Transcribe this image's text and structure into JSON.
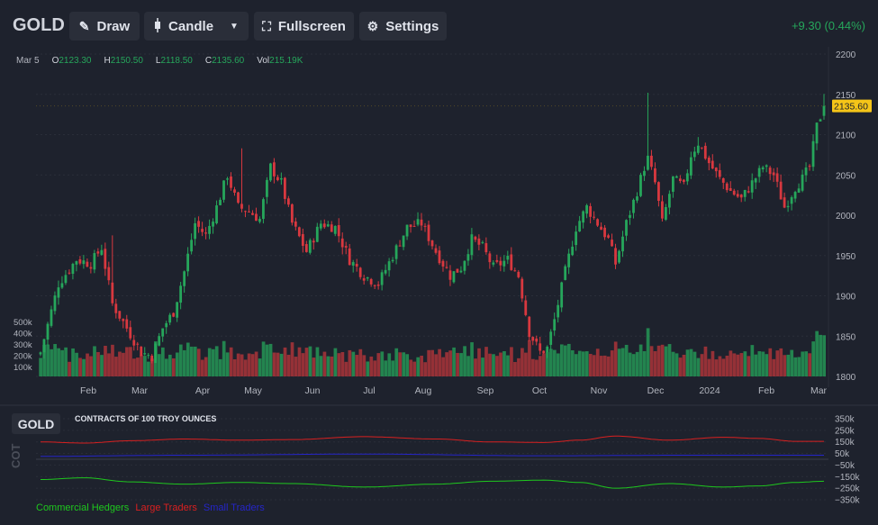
{
  "toolbar": {
    "symbol": "GOLD",
    "draw_label": "Draw",
    "candle_label": "Candle",
    "fullscreen_label": "Fullscreen",
    "settings_label": "Settings",
    "change_text": "+9.30 (0.44%)"
  },
  "ohlc": {
    "date": "Mar 5",
    "o_label": "O",
    "o_value": "2123.30",
    "h_label": "H",
    "h_value": "2150.50",
    "l_label": "L",
    "l_value": "2118.50",
    "c_label": "C",
    "c_value": "2135.60",
    "vol_label": "Vol",
    "vol_value": "215.19K"
  },
  "colors": {
    "up": "#26a65b",
    "down": "#d8383f",
    "price_tag": "#f5c518",
    "commercial": "#1ec81e",
    "large": "#d92020",
    "small": "#2525c8"
  },
  "chart_data": [
    {
      "type": "candlestick",
      "title": "GOLD",
      "x_ticks": [
        "Feb",
        "Mar",
        "Apr",
        "May",
        "Jun",
        "Jul",
        "Aug",
        "Sep",
        "Oct",
        "Nov",
        "Dec",
        "2024",
        "Feb",
        "Mar"
      ],
      "y_ticks": [
        1800,
        1850,
        1900,
        1950,
        2000,
        2050,
        2100,
        2150,
        2200
      ],
      "ylim": [
        1800,
        2200
      ],
      "last_price": 2135.6,
      "last_price_label": "2135.60",
      "close_anchors": [
        [
          0,
          1830
        ],
        [
          5,
          1915
        ],
        [
          10,
          1945
        ],
        [
          14,
          1940
        ],
        [
          17,
          1960
        ],
        [
          20,
          1890
        ],
        [
          24,
          1860
        ],
        [
          28,
          1830
        ],
        [
          31,
          1825
        ],
        [
          34,
          1860
        ],
        [
          37,
          1880
        ],
        [
          40,
          1930
        ],
        [
          43,
          1990
        ],
        [
          46,
          1975
        ],
        [
          49,
          2010
        ],
        [
          52,
          2050
        ],
        [
          55,
          2010
        ],
        [
          58,
          2005
        ],
        [
          61,
          1995
        ],
        [
          64,
          2060
        ],
        [
          67,
          2040
        ],
        [
          70,
          1990
        ],
        [
          74,
          1955
        ],
        [
          78,
          1990
        ],
        [
          82,
          1985
        ],
        [
          86,
          1945
        ],
        [
          90,
          1925
        ],
        [
          94,
          1915
        ],
        [
          98,
          1950
        ],
        [
          102,
          1985
        ],
        [
          106,
          1990
        ],
        [
          110,
          1955
        ],
        [
          114,
          1925
        ],
        [
          117,
          1935
        ],
        [
          120,
          1970
        ],
        [
          123,
          1960
        ],
        [
          126,
          1935
        ],
        [
          130,
          1945
        ],
        [
          133,
          1925
        ],
        [
          136,
          1855
        ],
        [
          139,
          1830
        ],
        [
          141,
          1835
        ],
        [
          143,
          1870
        ],
        [
          146,
          1930
        ],
        [
          149,
          1985
        ],
        [
          152,
          2010
        ],
        [
          155,
          1990
        ],
        [
          158,
          1970
        ],
        [
          160,
          1940
        ],
        [
          163,
          1990
        ],
        [
          166,
          2030
        ],
        [
          168,
          2060
        ],
        [
          169,
          2070
        ],
        [
          171,
          2040
        ],
        [
          173,
          1990
        ],
        [
          176,
          2045
        ],
        [
          179,
          2035
        ],
        [
          181,
          2075
        ],
        [
          183,
          2090
        ],
        [
          186,
          2065
        ],
        [
          189,
          2045
        ],
        [
          192,
          2030
        ],
        [
          195,
          2020
        ],
        [
          198,
          2040
        ],
        [
          201,
          2060
        ],
        [
          204,
          2050
        ],
        [
          207,
          2010
        ],
        [
          210,
          2035
        ],
        [
          212,
          2045
        ],
        [
          214,
          2060
        ],
        [
          216,
          2110
        ],
        [
          218,
          2135
        ]
      ],
      "candle_count": 219,
      "volume_ticks": [
        "100k",
        "200k",
        "300k",
        "400k",
        "500k"
      ],
      "volume_max": 500
    },
    {
      "type": "line",
      "title": "CONTRACTS OF 100 TROY OUNCES",
      "side_label": "COT",
      "y_ticks": [
        "350k",
        "250k",
        "150k",
        "50k",
        "−50k",
        "−150k",
        "−250k",
        "−350k"
      ],
      "ylim": [
        -350,
        350
      ],
      "series": [
        {
          "name": "Commercial Hedgers",
          "anchors": [
            [
              0,
              -175
            ],
            [
              12,
              -160
            ],
            [
              25,
              -195
            ],
            [
              40,
              -215
            ],
            [
              55,
              -200
            ],
            [
              70,
              -210
            ],
            [
              90,
              -240
            ],
            [
              110,
              -215
            ],
            [
              125,
              -190
            ],
            [
              140,
              -180
            ],
            [
              150,
              -200
            ],
            [
              160,
              -250
            ],
            [
              175,
              -210
            ],
            [
              190,
              -240
            ],
            [
              200,
              -230
            ],
            [
              210,
              -200
            ],
            [
              218,
              -190
            ]
          ]
        },
        {
          "name": "Large Traders",
          "anchors": [
            [
              0,
              150
            ],
            [
              12,
              140
            ],
            [
              25,
              160
            ],
            [
              40,
              175
            ],
            [
              55,
              165
            ],
            [
              70,
              170
            ],
            [
              90,
              195
            ],
            [
              110,
              175
            ],
            [
              125,
              150
            ],
            [
              140,
              145
            ],
            [
              150,
              165
            ],
            [
              160,
              200
            ],
            [
              175,
              165
            ],
            [
              190,
              190
            ],
            [
              200,
              180
            ],
            [
              210,
              155
            ],
            [
              218,
              155
            ]
          ]
        },
        {
          "name": "Small Traders",
          "anchors": [
            [
              0,
              25
            ],
            [
              40,
              35
            ],
            [
              90,
              45
            ],
            [
              140,
              30
            ],
            [
              180,
              35
            ],
            [
              218,
              35
            ]
          ]
        }
      ]
    }
  ]
}
